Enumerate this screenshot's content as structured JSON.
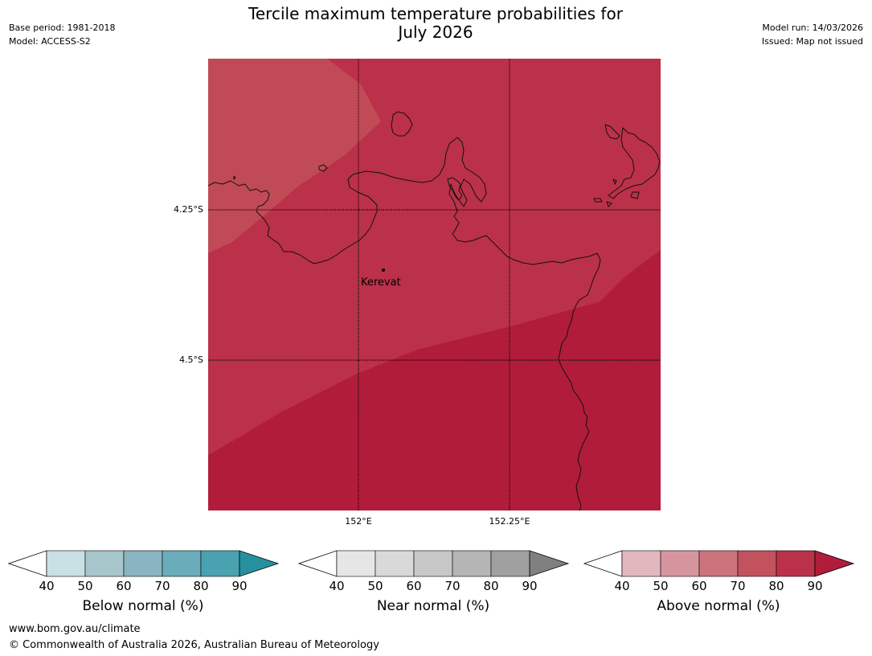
{
  "meta": {
    "base_period": "Base period: 1981-2018",
    "model": "Model: ACCESS-S2",
    "model_run": "Model run: 14/03/2026",
    "issued": "Issued: Map not issued"
  },
  "title": {
    "line1": "Tercile maximum temperature probabilities for",
    "line2": "July 2026"
  },
  "map": {
    "place_name": "Kerevat",
    "lat_labels": [
      "4.25°S",
      "4.5°S"
    ],
    "lon_labels": [
      "152°E",
      "152.25°E"
    ],
    "colors": {
      "zone_70_80_light": "#c14a57",
      "zone_80_90": "#bb3149",
      "zone_90_plus": "#b11c3a",
      "coastline": "#111111"
    }
  },
  "legends": [
    {
      "title": "Below normal (%)",
      "ticks": [
        "40",
        "50",
        "60",
        "70",
        "80",
        "90"
      ],
      "colors": [
        "#ffffff",
        "#c9e0e5",
        "#a7c6cb",
        "#8ab5c0",
        "#6aacba",
        "#4aa2b0",
        "#27909f"
      ]
    },
    {
      "title": "Near normal (%)",
      "ticks": [
        "40",
        "50",
        "60",
        "70",
        "80",
        "90"
      ],
      "colors": [
        "#ffffff",
        "#e6e6e6",
        "#d9d9d9",
        "#c8c8c8",
        "#b5b5b5",
        "#a0a0a0",
        "#808080"
      ]
    },
    {
      "title": "Above normal (%)",
      "ticks": [
        "40",
        "50",
        "60",
        "70",
        "80",
        "90"
      ],
      "colors": [
        "#ffffff",
        "#e3b7be",
        "#d6959e",
        "#cb747e",
        "#c2525e",
        "#bb3149",
        "#b11c3a"
      ]
    }
  ],
  "footer": {
    "url": "www.bom.gov.au/climate",
    "copyright": "© Commonwealth of Australia 2026, Australian Bureau of Meteorology"
  }
}
